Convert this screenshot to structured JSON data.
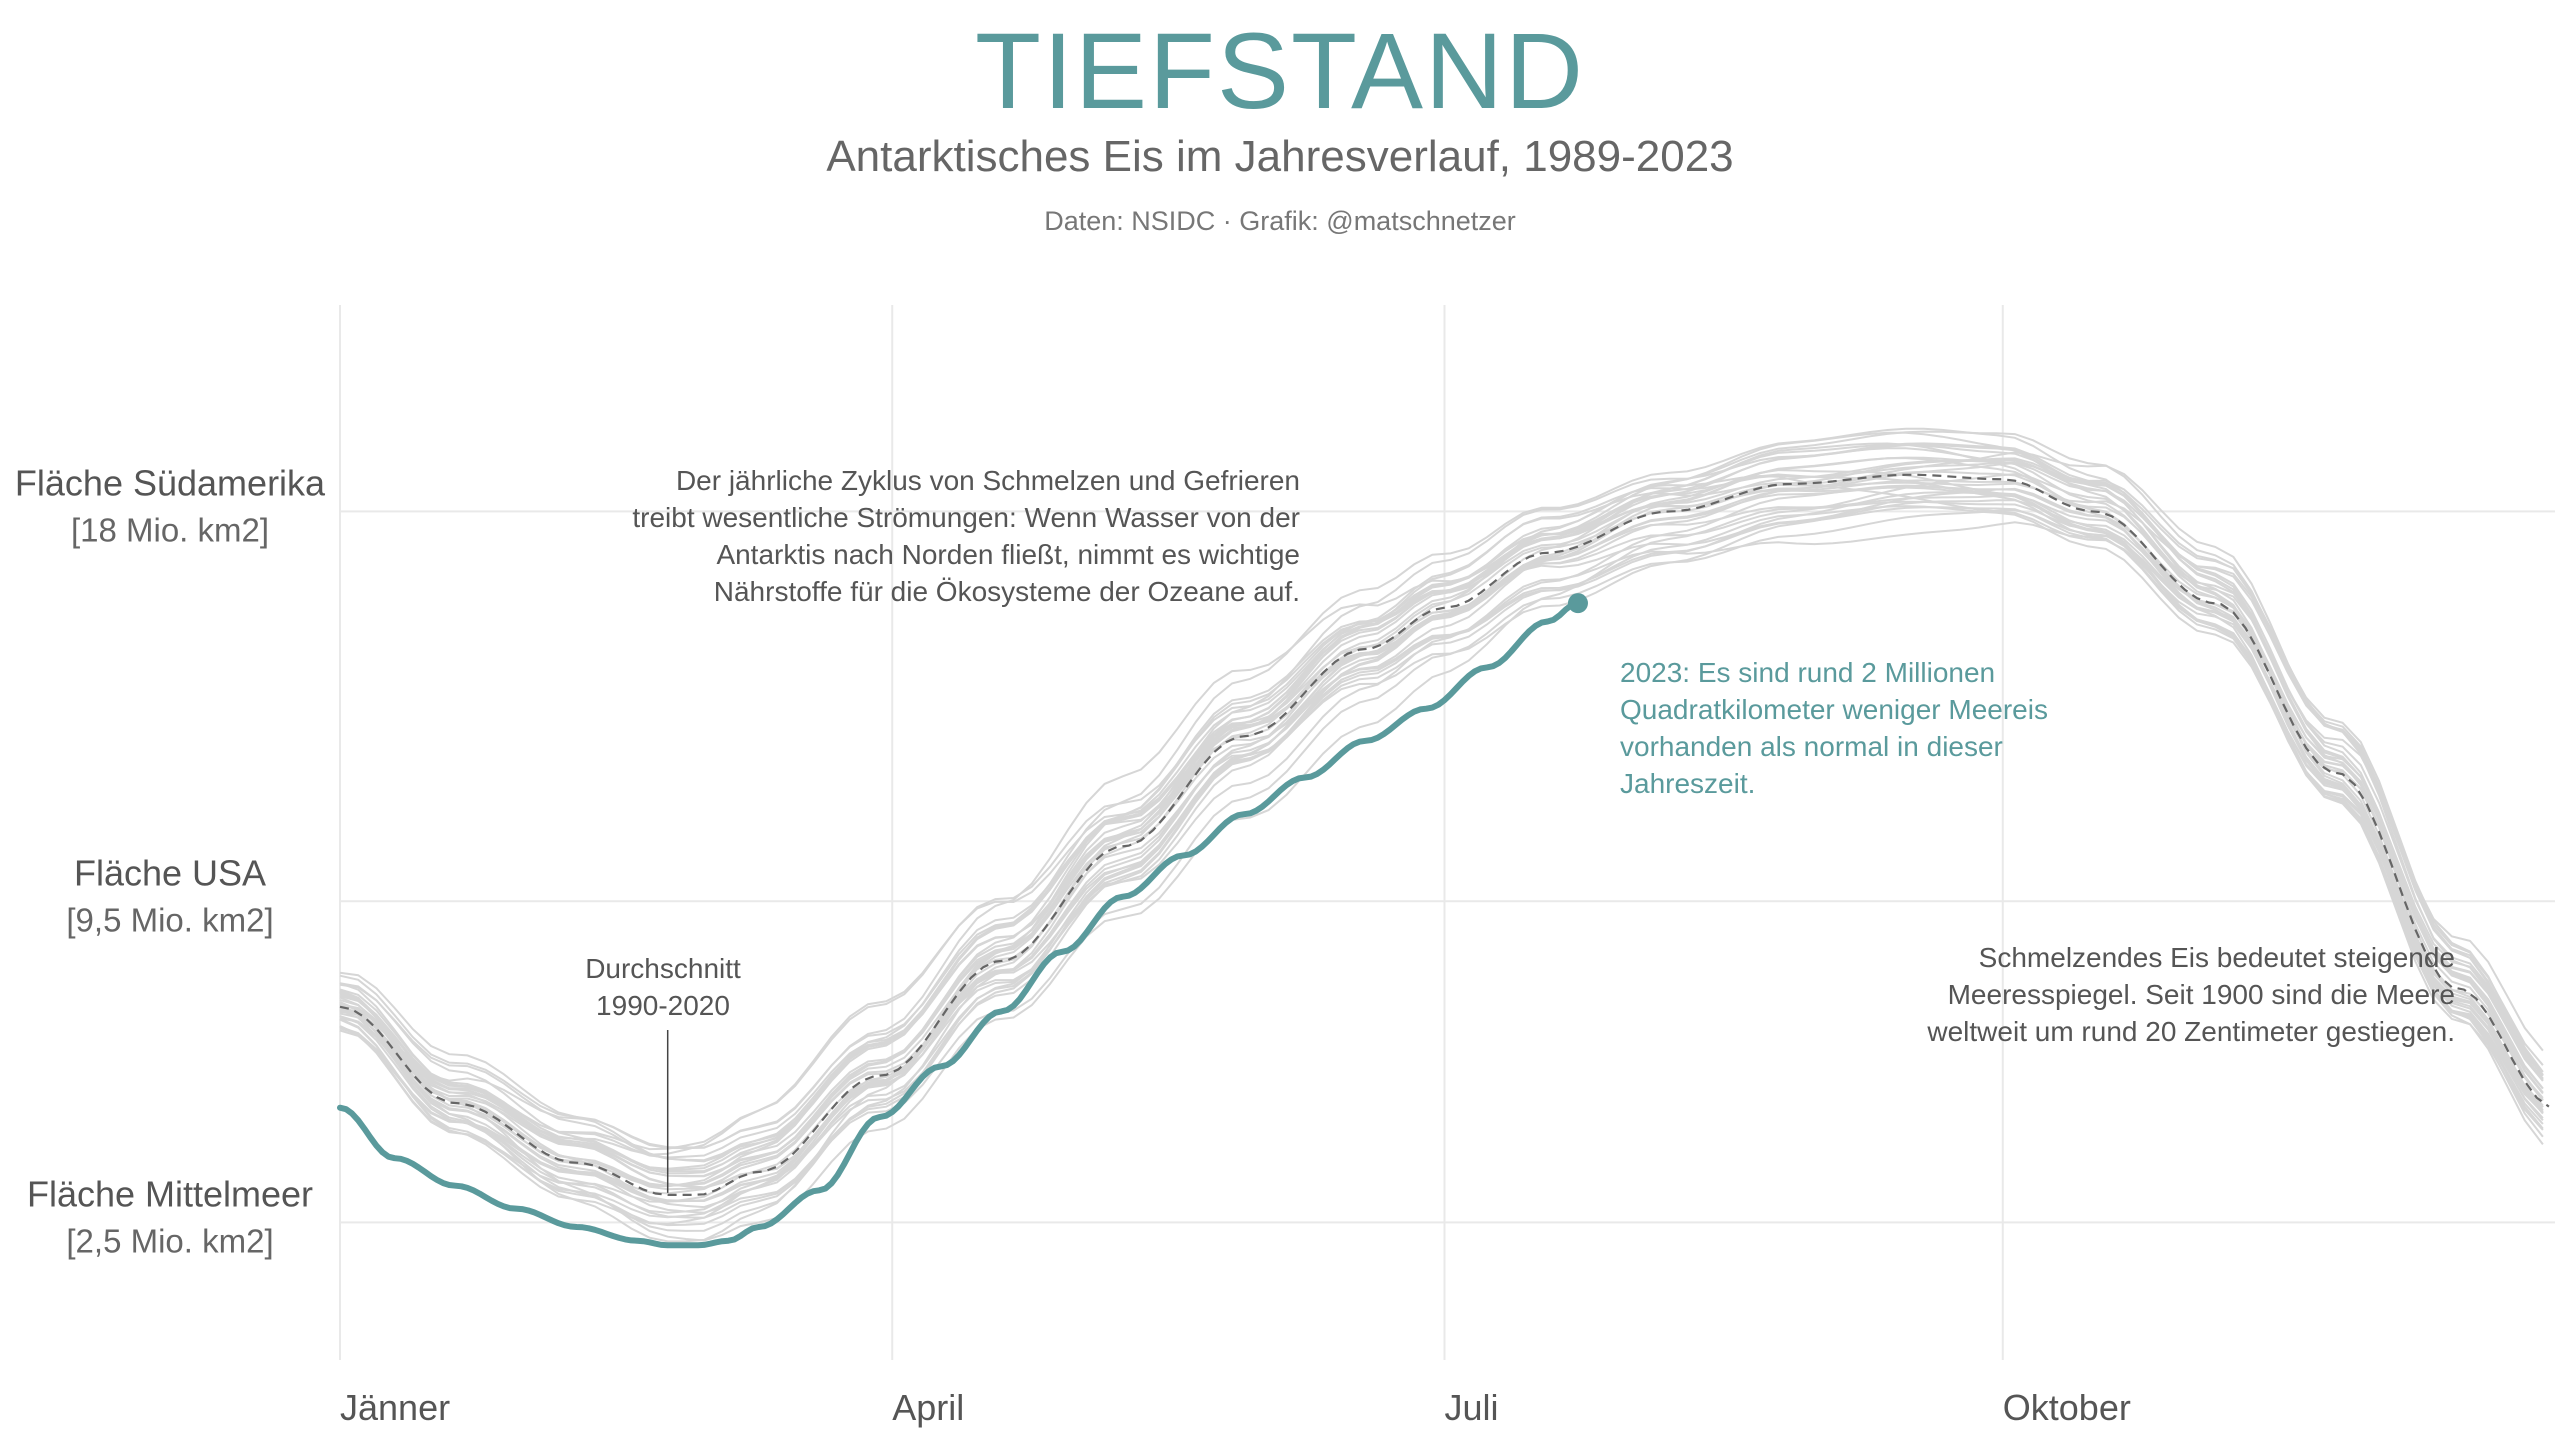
{
  "title": "TIEFSTAND",
  "subtitle": "Antarktisches Eis im Jahresverlauf, 1989-2023",
  "source": "Daten: NSIDC · Grafik: @matschnetzer",
  "colors": {
    "highlight": "#5a9a9c",
    "history": "#d6d6d6",
    "average": "#666666",
    "grid": "#e9e9e9",
    "text": "#555555"
  },
  "chart_data": {
    "type": "line",
    "x_unit": "Tag im Jahr",
    "y_unit": "Mio. km2",
    "xlim": [
      1,
      366
    ],
    "ylim": [
      -0.5,
      22.5
    ],
    "grid": true,
    "x_ticks": [
      {
        "day": 1,
        "label": "Jänner"
      },
      {
        "day": 92,
        "label": "April"
      },
      {
        "day": 183,
        "label": "Juli"
      },
      {
        "day": 275,
        "label": "Oktober"
      }
    ],
    "y_reference_lines": [
      {
        "value": 18,
        "label": "Fläche Südamerika",
        "sublabel": "[18 Mio. km2]"
      },
      {
        "value": 9.5,
        "label": "Fläche USA",
        "sublabel": "[9,5 Mio. km2]"
      },
      {
        "value": 2.5,
        "label": "Fläche Mittelmeer",
        "sublabel": "[2,5 Mio. km2]"
      }
    ],
    "history_years": "1989-2022",
    "average": {
      "name": "Durchschnitt 1990-2020",
      "x": [
        1,
        20,
        40,
        55,
        60,
        70,
        90,
        110,
        130,
        150,
        170,
        183,
        200,
        220,
        240,
        260,
        275,
        290,
        310,
        330,
        350,
        366
      ],
      "y": [
        7.2,
        5.1,
        3.8,
        3.1,
        3.1,
        3.6,
        5.7,
        8.2,
        10.7,
        13.1,
        15.0,
        15.9,
        17.1,
        18.0,
        18.6,
        18.8,
        18.7,
        18.0,
        16.0,
        12.3,
        7.6,
        5.0
      ]
    },
    "series_2023": {
      "x": [
        1,
        10,
        20,
        30,
        40,
        50,
        55,
        60,
        65,
        70,
        80,
        90,
        100,
        110,
        120,
        130,
        140,
        150,
        160,
        170,
        180,
        190,
        200,
        205
      ],
      "y": [
        5.0,
        3.9,
        3.3,
        2.8,
        2.4,
        2.1,
        2.0,
        2.0,
        2.1,
        2.4,
        3.2,
        4.8,
        5.9,
        7.1,
        8.4,
        9.6,
        10.5,
        11.4,
        12.2,
        13.0,
        13.7,
        14.6,
        15.6,
        16.0
      ]
    },
    "annotations": [
      {
        "id": "cycle",
        "text": [
          "Der jährliche Zyklus von Schmelzen und Gefrieren",
          "treibt wesentliche Strömungen: Wenn Wasser von der",
          "Antarktis nach Norden fließt, nimmt es wichtige",
          "Nährstoffe für die Ökosysteme der Ozeane auf."
        ]
      },
      {
        "id": "avg",
        "text": [
          "Durchschnitt",
          "1990-2020"
        ]
      },
      {
        "id": "y2023",
        "text": [
          "2023: Es sind rund 2 Millionen",
          "Quadratkilometer weniger Meereis",
          "vorhanden als normal in dieser",
          "Jahreszeit."
        ]
      },
      {
        "id": "sea",
        "text": [
          "Schmelzendes Eis bedeutet steigende",
          "Meeresspiegel. Seit 1900 sind die Meere",
          "weltweit um rund 20 Zentimeter gestiegen."
        ]
      }
    ]
  }
}
